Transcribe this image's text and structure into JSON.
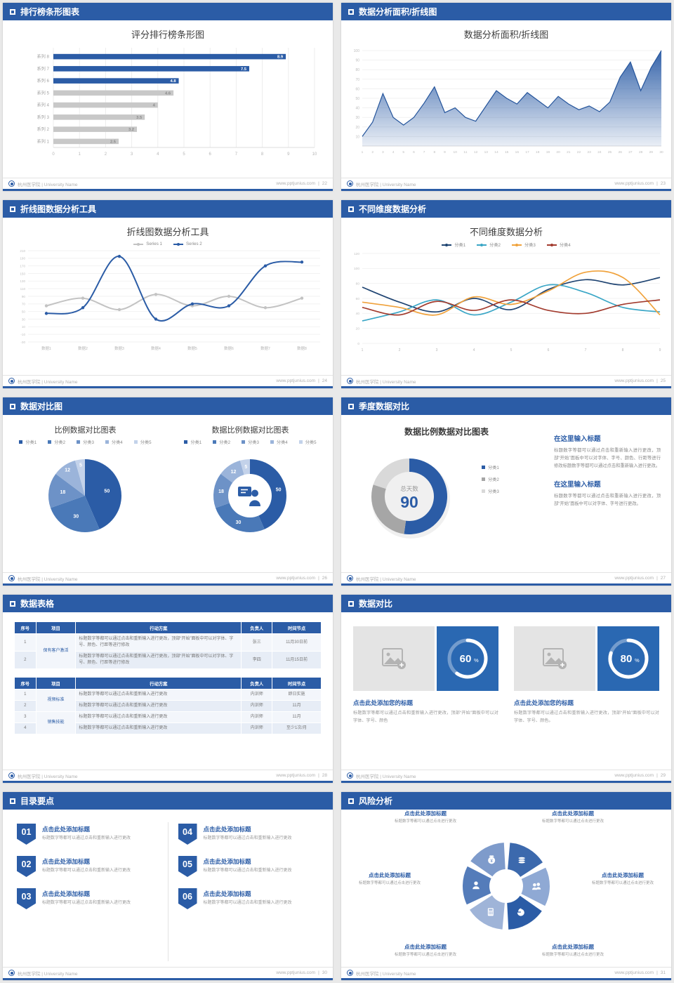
{
  "accent": "#2b5ca6",
  "footer": {
    "org": "杭州医学院 | University Name",
    "site": "www.pptjunius.com",
    "sep": "|"
  },
  "slides": [
    {
      "header": "排行榜条形图表",
      "page": "22",
      "title": "评分排行榜条形图",
      "chart_data": {
        "type": "bar",
        "orientation": "horizontal",
        "categories": [
          "系列 8",
          "系列 7",
          "系列 6",
          "系列 5",
          "系列 4",
          "系列 3",
          "系列 2",
          "系列 1"
        ],
        "values": [
          8.9,
          7.5,
          4.8,
          4.6,
          4,
          3.5,
          3.2,
          2.5
        ],
        "value_labels": [
          "8.9",
          "7.5",
          "4.8",
          "4.6",
          "4",
          "3.5",
          "3.2",
          "2.5"
        ],
        "bar_colors": [
          "#2b5ca6",
          "#2b5ca6",
          "#2b5ca6",
          "#c8c8c8",
          "#c8c8c8",
          "#c8c8c8",
          "#c8c8c8",
          "#c8c8c8"
        ],
        "xlim": [
          0,
          10
        ],
        "xticks": [
          0,
          1,
          2,
          3,
          4,
          5,
          6,
          7,
          8,
          9,
          10
        ]
      }
    },
    {
      "header": "数据分析面积/折线图",
      "page": "23",
      "title": "数据分析面积/折线图",
      "chart_data": {
        "type": "area",
        "x": [
          1,
          2,
          3,
          4,
          5,
          6,
          7,
          8,
          9,
          10,
          11,
          12,
          13,
          14,
          15,
          16,
          17,
          18,
          19,
          20,
          21,
          22,
          23,
          24,
          25,
          26,
          27,
          28,
          29,
          30
        ],
        "values": [
          10,
          25,
          55,
          30,
          22,
          30,
          45,
          62,
          35,
          40,
          30,
          26,
          42,
          58,
          50,
          44,
          56,
          48,
          40,
          52,
          44,
          38,
          42,
          36,
          46,
          72,
          88,
          58,
          82,
          100
        ],
        "ylim": [
          0,
          100
        ],
        "yticks": [
          10,
          20,
          30,
          40,
          50,
          60,
          70,
          80,
          90,
          100
        ],
        "color": "#2b5ca6"
      }
    },
    {
      "header": "折线图数据分析工具",
      "page": "24",
      "title": "折线图数据分析工具",
      "chart_data": {
        "type": "line",
        "categories": [
          "数据1",
          "数据2",
          "数据3",
          "数据4",
          "数据5",
          "数据6",
          "数据7",
          "数据8"
        ],
        "series": [
          {
            "name": "Series 1",
            "color": "#c3c3c3",
            "values": [
              65,
              85,
              55,
              95,
              65,
              90,
              60,
              85
            ]
          },
          {
            "name": "Series 2",
            "color": "#2b5ca6",
            "values": [
              45,
              60,
              195,
              30,
              70,
              65,
              170,
              180
            ]
          }
        ],
        "ylim": [
          -30,
          210
        ],
        "ytick_step": 20
      }
    },
    {
      "header": "不同维度数据分析",
      "page": "25",
      "title": "不同维度数据分析",
      "chart_data": {
        "type": "line",
        "x": [
          1,
          2,
          3,
          4,
          5,
          6,
          7,
          8,
          9
        ],
        "series": [
          {
            "name": "分类1",
            "color": "#1f4472",
            "values": [
              75,
              55,
              42,
              60,
              45,
              72,
              85,
              78,
              88
            ]
          },
          {
            "name": "分类2",
            "color": "#3aa6c6",
            "values": [
              30,
              42,
              58,
              38,
              55,
              78,
              68,
              48,
              42
            ]
          },
          {
            "name": "分类3",
            "color": "#f0a23c",
            "values": [
              55,
              48,
              38,
              62,
              52,
              70,
              95,
              88,
              38
            ]
          },
          {
            "name": "分类4",
            "color": "#a23b2e",
            "values": [
              48,
              38,
              56,
              44,
              58,
              44,
              40,
              52,
              58
            ]
          }
        ],
        "ylim": [
          0,
          120
        ],
        "ytick_step": 20
      }
    },
    {
      "header": "数据对比图",
      "page": "26",
      "left": {
        "title": "比例数据对比图表",
        "chart_data": {
          "type": "pie",
          "labels": [
            "分类1",
            "分类2",
            "分类3",
            "分类4",
            "分类5"
          ],
          "values": [
            50,
            30,
            18,
            12,
            5
          ],
          "colors": [
            "#2b5ca6",
            "#4a79b8",
            "#6d92c7",
            "#9bb4da",
            "#c3d2ea"
          ]
        }
      },
      "right": {
        "title": "数据比例数据对比图表",
        "chart_data": {
          "type": "donut",
          "labels": [
            "分类1",
            "分类2",
            "分类3",
            "分类4",
            "分类5"
          ],
          "values": [
            50,
            30,
            18,
            12,
            5
          ],
          "colors": [
            "#2b5ca6",
            "#4a79b8",
            "#6d92c7",
            "#9bb4da",
            "#c3d2ea"
          ],
          "center_icon": "presenter-icon"
        }
      }
    },
    {
      "header": "季度数据对比",
      "page": "27",
      "title": "数据比例数据对比图表",
      "chart_data": {
        "type": "donut",
        "labels": [
          "分类1",
          "分类2",
          "分类3"
        ],
        "values": [
          47,
          25,
          18
        ],
        "colors": [
          "#2b5ca6",
          "#a6a6a6",
          "#d9d9d9"
        ],
        "center_label": "总天数",
        "center_value": "90",
        "total": 90
      },
      "blocks": [
        {
          "heading": "在这里输入标题",
          "body": "标题数字等都可以通过点击和重新输入进行更改，顶部“开始”面板中可以对字体、字号、颜色、行距等进行修改标题数字等都可以通过点击和重新输入进行更改。"
        },
        {
          "heading": "在这里输入标题",
          "body": "标题数字等都可以通过点击和重新输入进行更改，顶部“开始”面板中可以对字体、字号进行更改。"
        }
      ]
    },
    {
      "header": "数据表格",
      "page": "28",
      "tables": [
        {
          "headers": [
            "序号",
            "项目",
            "行动方案",
            "负责人",
            "时间节点"
          ],
          "groups": [
            {
              "project": "保有客户激活",
              "rows": [
                {
                  "no": "1",
                  "plan": "标题数字等都可以通过点击和重新输入进行更改，顶部“开始”面板中可以对字体、字号、颜色、行距等进行修改",
                  "owner": "张三",
                  "time": "11月30日前"
                },
                {
                  "no": "2",
                  "plan": "标题数字等都可以通过点击和重新输入进行更改，顶部“开始”面板中可以对字体、字号、颜色、行距等进行修改",
                  "owner": "李四",
                  "time": "11月15日前"
                }
              ]
            }
          ]
        },
        {
          "headers": [
            "序号",
            "项目",
            "行动方案",
            "负责人",
            "时间节点"
          ],
          "groups": [
            {
              "project": "视频标准",
              "rows": [
                {
                  "no": "1",
                  "plan": "标题数字等都可以通过点击和重新输入进行更改",
                  "owner": "内训师",
                  "time": "即日实施"
                },
                {
                  "no": "2",
                  "plan": "标题数字等都可以通过点击和重新输入进行更改",
                  "owner": "内训师",
                  "time": "11月"
                }
              ]
            },
            {
              "project": "销售技能",
              "rows": [
                {
                  "no": "3",
                  "plan": "标题数字等都可以通过点击和重新输入进行更改",
                  "owner": "内训师",
                  "time": "11月"
                },
                {
                  "no": "4",
                  "plan": "标题数字等都可以通过点击和重新输入进行更改",
                  "owner": "内训师",
                  "time": "至少1次/月"
                }
              ]
            }
          ]
        }
      ]
    },
    {
      "header": "数据对比",
      "page": "29",
      "cards": [
        {
          "percent": 60,
          "heading": "点击此处添加您的标题",
          "body": "标题数字等都可以通过点击和重新输入进行更改，顶部“开始”面板中可以对字体、字号、颜色"
        },
        {
          "percent": 80,
          "heading": "点击此处添加您的标题",
          "body": "标题数字等都可以通过点击和重新输入进行更改，顶部“开始”面板中可以对字体、字号、颜色。"
        }
      ]
    },
    {
      "header": "目录要点",
      "page": "30",
      "items": [
        {
          "num": "01",
          "heading": "点击此处添加标题",
          "body": "标题数字等都可以通过点击和重新输入进行更改"
        },
        {
          "num": "02",
          "heading": "点击此处添加标题",
          "body": "标题数字等都可以通过点击和重新输入进行更改"
        },
        {
          "num": "03",
          "heading": "点击此处添加标题",
          "body": "标题数字等都可以通过点击和重新输入进行更改"
        },
        {
          "num": "04",
          "heading": "点击此处添加标题",
          "body": "标题数字等都可以通过点击和重新输入进行更改"
        },
        {
          "num": "05",
          "heading": "点击此处添加标题",
          "body": "标题数字等都可以通过点击和重新输入进行更改"
        },
        {
          "num": "06",
          "heading": "点击此处添加标题",
          "body": "标题数字等都可以通过点击和重新输入进行更改"
        }
      ]
    },
    {
      "header": "风险分析",
      "page": "31",
      "petals": [
        {
          "icon": "coins-icon",
          "color": "#3c69ad"
        },
        {
          "icon": "people-icon",
          "color": "#8fa9d4"
        },
        {
          "icon": "pie-chart-icon",
          "color": "#2b5ca6"
        },
        {
          "icon": "calculator-icon",
          "color": "#9fb4d8"
        },
        {
          "icon": "person-icon",
          "color": "#547cba"
        },
        {
          "icon": "money-bag-icon",
          "color": "#7e9bcb"
        }
      ],
      "labels": [
        {
          "heading": "点击此处添加标题",
          "body": "标题数字等都可以通过点击进行更改"
        },
        {
          "heading": "点击此处添加标题",
          "body": "标题数字等都可以通过点击进行更改"
        },
        {
          "heading": "点击此处添加标题",
          "body": "标题数字等都可以通过点击进行更改"
        },
        {
          "heading": "点击此处添加标题",
          "body": "标题数字等都可以通过点击进行更改"
        },
        {
          "heading": "点击此处添加标题",
          "body": "标题数字等都可以通过点击进行更改"
        },
        {
          "heading": "点击此处添加标题",
          "body": "标题数字等都可以通过点击进行更改"
        }
      ]
    }
  ]
}
